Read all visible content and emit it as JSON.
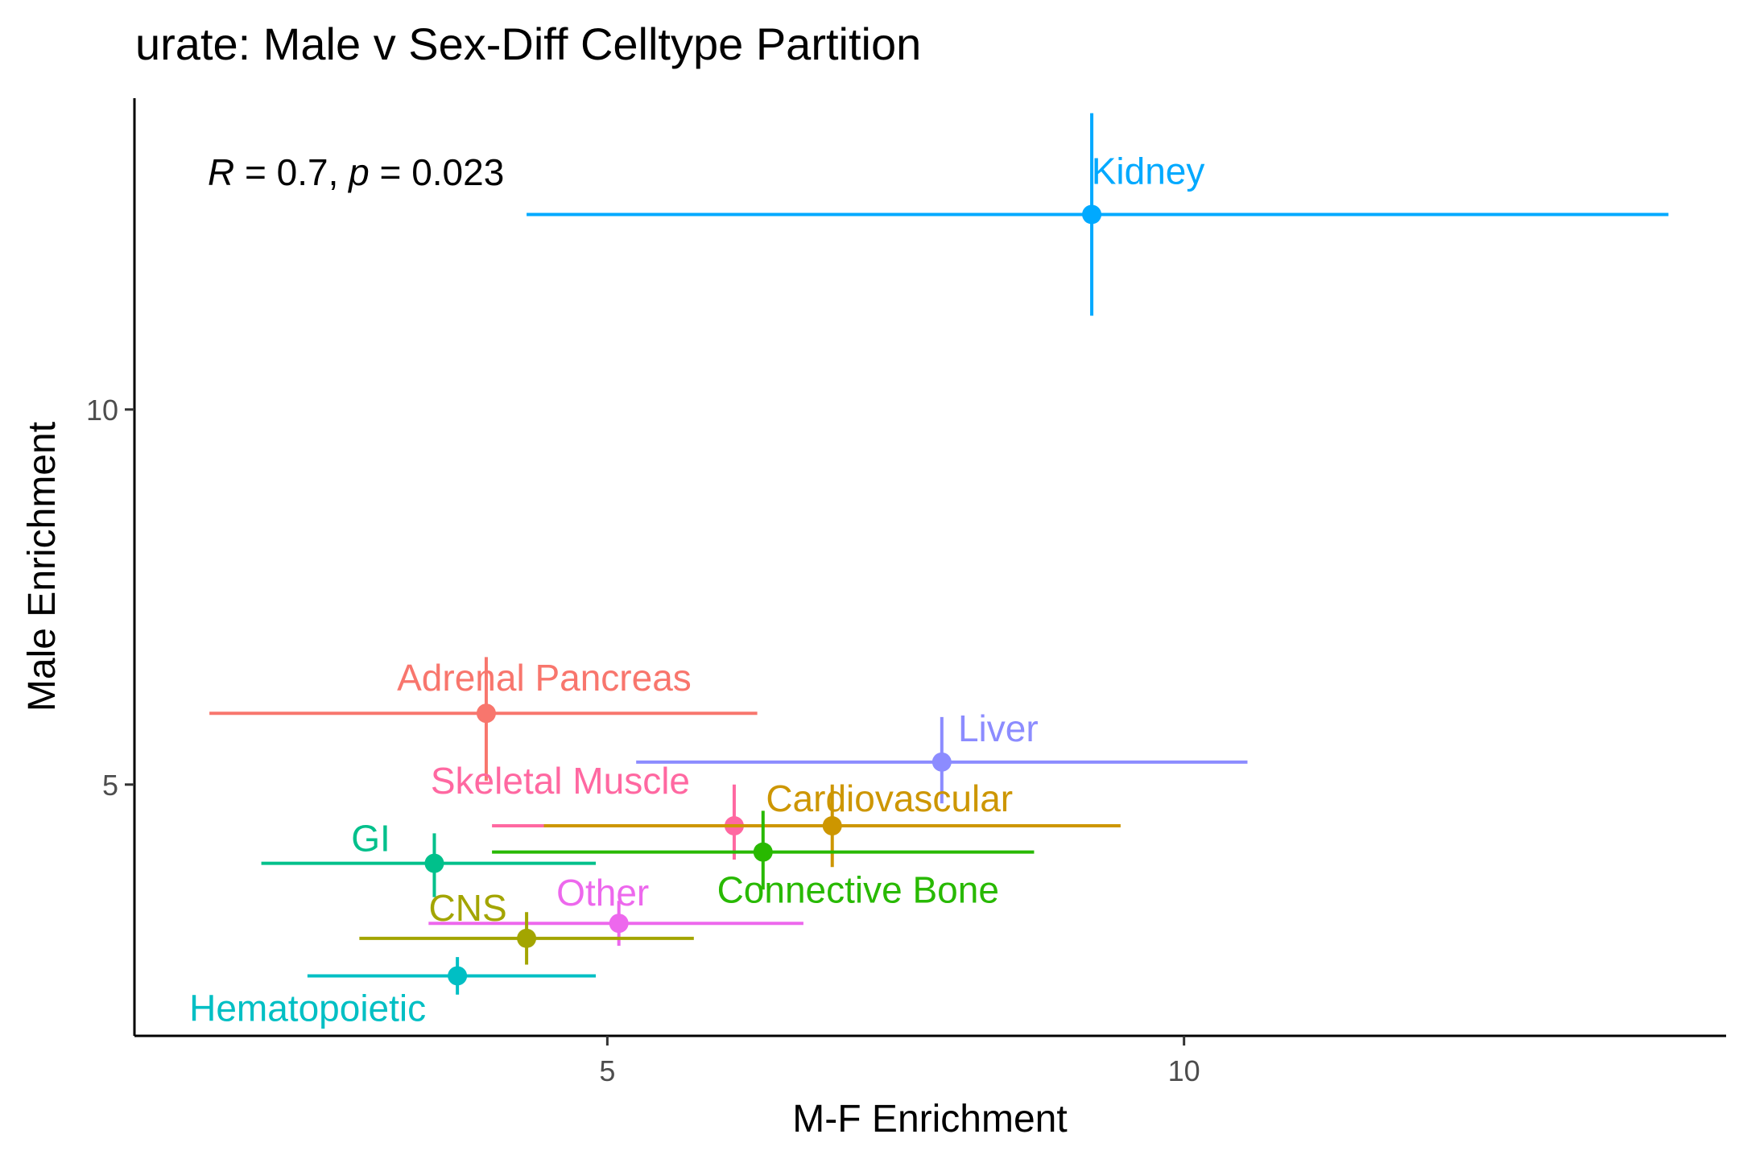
{
  "chart_data": {
    "type": "scatter",
    "title": "urate: Male v Sex-Diff Celltype Partition",
    "xlabel": "M-F Enrichment",
    "ylabel": "Male Enrichment",
    "xlim": [
      0.9,
      14.7
    ],
    "ylim": [
      1.65,
      14.15
    ],
    "x_ticks": [
      5,
      10
    ],
    "y_ticks": [
      5,
      10
    ],
    "grid": false,
    "legend": "none",
    "annotation": {
      "r_symbol": "R",
      "r_text": " = 0.7, ",
      "p_symbol": "p",
      "p_text": " = 0.023"
    },
    "points": [
      {
        "label": "Kidney",
        "color": "#00A9FF",
        "x": 9.2,
        "y": 12.6,
        "xmin": 4.3,
        "xmax": 14.2,
        "ymin": 11.25,
        "ymax": 13.95
      },
      {
        "label": "Adrenal Pancreas",
        "color": "#F8766D",
        "x": 3.95,
        "y": 5.95,
        "xmin": 1.55,
        "xmax": 6.3,
        "ymin": 5.05,
        "ymax": 6.7
      },
      {
        "label": "Liver",
        "color": "#8C8CFF",
        "x": 7.9,
        "y": 5.3,
        "xmin": 5.25,
        "xmax": 10.55,
        "ymin": 4.75,
        "ymax": 5.9
      },
      {
        "label": "Skeletal Muscle",
        "color": "#FF68A1",
        "x": 6.1,
        "y": 4.45,
        "xmin": 4.0,
        "xmax": 8.2,
        "ymin": 4.0,
        "ymax": 5.0
      },
      {
        "label": "Cardiovascular",
        "color": "#CD9600",
        "x": 6.95,
        "y": 4.45,
        "xmin": 4.45,
        "xmax": 9.45,
        "ymin": 3.9,
        "ymax": 5.0
      },
      {
        "label": "Connective Bone",
        "color": "#28B900",
        "x": 6.35,
        "y": 4.1,
        "xmin": 4.0,
        "xmax": 8.7,
        "ymin": 3.6,
        "ymax": 4.65
      },
      {
        "label": "GI",
        "color": "#00C08B",
        "x": 3.5,
        "y": 3.95,
        "xmin": 2.0,
        "xmax": 4.9,
        "ymin": 3.5,
        "ymax": 4.35
      },
      {
        "label": "Other",
        "color": "#ED68ED",
        "x": 5.1,
        "y": 3.15,
        "xmin": 3.45,
        "xmax": 6.7,
        "ymin": 2.85,
        "ymax": 3.45
      },
      {
        "label": "CNS",
        "color": "#A3A500",
        "x": 4.3,
        "y": 2.95,
        "xmin": 2.85,
        "xmax": 5.75,
        "ymin": 2.6,
        "ymax": 3.3
      },
      {
        "label": "Hematopoietic",
        "color": "#00BFC4",
        "x": 3.7,
        "y": 2.45,
        "xmin": 2.4,
        "xmax": 4.9,
        "ymin": 2.2,
        "ymax": 2.7
      }
    ]
  }
}
